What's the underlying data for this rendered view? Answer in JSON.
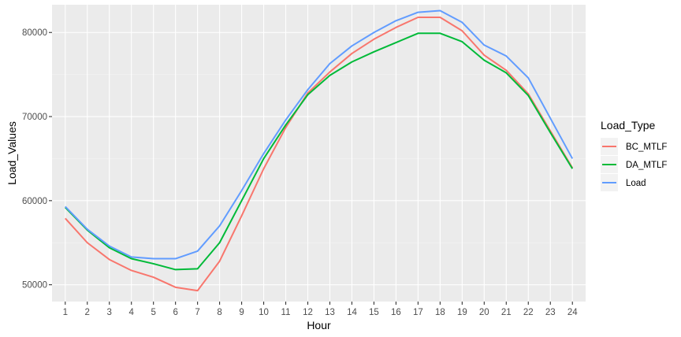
{
  "chart_data": {
    "type": "line",
    "xlabel": "Hour",
    "ylabel": "Load_Values",
    "legend_title": "Load_Type",
    "legend_position": "right",
    "grid": true,
    "x": [
      1,
      2,
      3,
      4,
      5,
      6,
      7,
      8,
      9,
      10,
      11,
      12,
      13,
      14,
      15,
      16,
      17,
      18,
      19,
      20,
      21,
      22,
      23,
      24
    ],
    "xlim": [
      0.4,
      24.6
    ],
    "ylim": [
      48000,
      83300
    ],
    "y_ticks": [
      50000,
      60000,
      70000,
      80000
    ],
    "y_tick_labels": [
      "50000",
      "60000",
      "70000",
      "80000"
    ],
    "series": [
      {
        "name": "BC_MTLF",
        "color": "#F8766D",
        "values": [
          57900,
          55000,
          53000,
          51700,
          50900,
          49700,
          49300,
          52800,
          58200,
          63800,
          68700,
          72800,
          75300,
          77500,
          79200,
          80600,
          81800,
          81800,
          80200,
          77300,
          75500,
          72700,
          68300,
          63900
        ]
      },
      {
        "name": "DA_MTLF",
        "color": "#00BA38",
        "values": [
          59200,
          56500,
          54400,
          53100,
          52500,
          51800,
          51900,
          55000,
          60000,
          65000,
          69000,
          72600,
          74900,
          76500,
          77700,
          78800,
          79900,
          79900,
          78900,
          76700,
          75200,
          72500,
          68100,
          63800
        ]
      },
      {
        "name": "Load",
        "color": "#619CFF",
        "values": [
          59300,
          56600,
          54600,
          53300,
          53100,
          53100,
          54000,
          57000,
          61200,
          65600,
          69600,
          73200,
          76300,
          78400,
          80000,
          81400,
          82400,
          82600,
          81200,
          78500,
          77200,
          74600,
          69800,
          65000
        ]
      }
    ]
  }
}
